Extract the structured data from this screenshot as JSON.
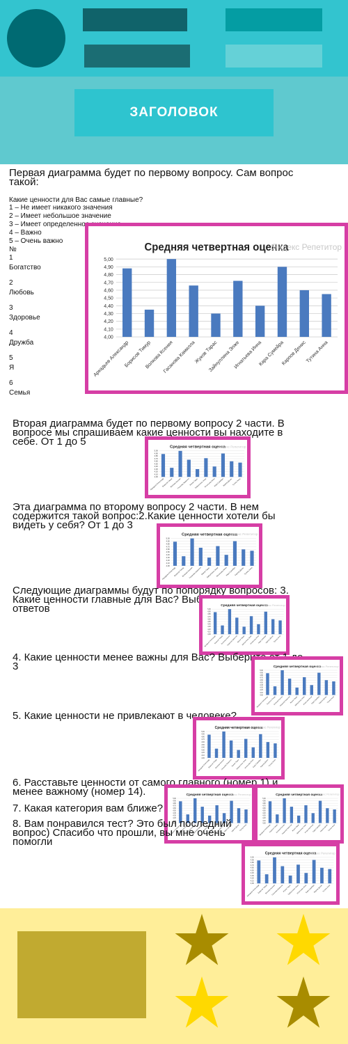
{
  "colors": {
    "header": "#33c4cf",
    "band": "#5fc9cf",
    "magenta": "#d63ea5",
    "footer": "#ffee99",
    "olive": "#c1aa30",
    "gold": "#ffd900",
    "dark_gold": "#a88c00",
    "bar": "#4a7abf"
  },
  "header": {
    "title": "ЗАГОЛОВОК"
  },
  "intro": {
    "line1": "Первая диаграмма будет по первому вопросу. Сам вопрос такой:",
    "question": "Какие ценности для Вас самые главные?",
    "scale": [
      "1 – Не имеет никакого значения",
      "2 – Имеет небольшое значение",
      "3 – Имеет определенное значение",
      "4 – Важно",
      "5 – Очень важно"
    ],
    "num_header": "№",
    "values": [
      {
        "n": "1",
        "label": "Богатство"
      },
      {
        "n": "2",
        "label": "Любовь"
      },
      {
        "n": "3",
        "label": "Здоровье"
      },
      {
        "n": "4",
        "label": "Дружба"
      },
      {
        "n": "5",
        "label": "Я"
      },
      {
        "n": "6",
        "label": "Семья"
      }
    ]
  },
  "paragraphs": {
    "p2": "Вторая диаграмма будет по первому вопросу 2 части. В вопросе мы спрашиваем какие ценности вы находите в себе. От 1 до 5",
    "p3": "Эта диаграмма по второму вопросу 2 части. В нем содержится такой вопрос:2.Какие ценности хотели бы видеть у себя? От 1 до 3",
    "p4": "Следующие диаграммы будут по попорядку вопросов: 3. Какие ценности главные для Вас? Выберите от 1 до 4 ответов",
    "p5": "4. Какие ценности менее важны для Вас? Выберите от 1 до 3",
    "p6": "5. Какие ценности не привлекают в человеке?",
    "p7": "6. Расставьте ценности от самого главного (номер 1) и менее важному (номер 14).",
    "p8": "7. Какая категория вам ближе?",
    "p9": "8. Вам понравился тест? Это был последний вопрос) Спасибо что прошли, вы мне очень помогли"
  },
  "chart_data": {
    "type": "bar",
    "title": "Средняя четвертная оценка",
    "watermark": "Яндекс Репетитор",
    "categories": [
      "Аркадьев Александр",
      "Борисов Тимур",
      "Волкова Ксения",
      "Гасанова Камилла",
      "Жуков Тарас",
      "Зайнуллина Элже",
      "Игнатьева Инна",
      "Кара Сумейра",
      "Карпов Денис",
      "Тутина Анна"
    ],
    "values": [
      4.88,
      4.35,
      5.0,
      4.66,
      4.3,
      4.72,
      4.4,
      4.9,
      4.6,
      4.55
    ],
    "ylim": [
      4.0,
      5.0
    ],
    "yticks": [
      "4,00",
      "4,10",
      "4,20",
      "4,30",
      "4,40",
      "4,50",
      "4,60",
      "4,70",
      "4,80",
      "4,90",
      "5,00"
    ],
    "grid": true
  }
}
